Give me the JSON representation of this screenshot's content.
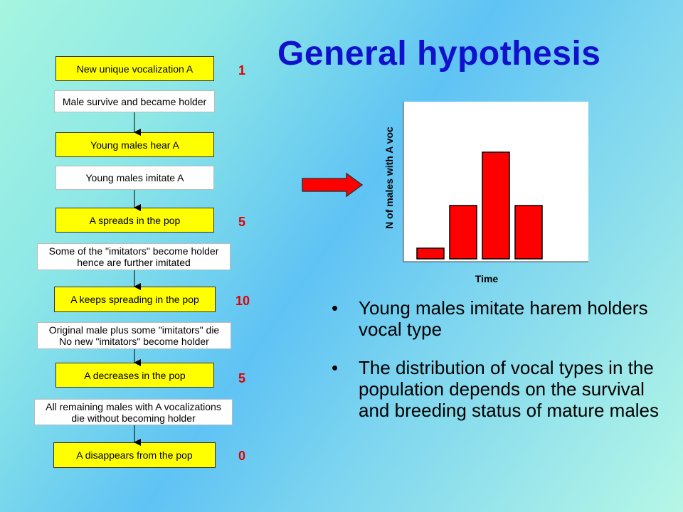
{
  "title": "General hypothesis",
  "flow": {
    "states": [
      {
        "label": "New unique vocalization A",
        "count": "1"
      },
      {
        "label": "Young males hear A",
        "count": ""
      },
      {
        "label": "A spreads in the pop",
        "count": "5"
      },
      {
        "label": "A keeps spreading in the pop",
        "count": "10"
      },
      {
        "label": "A decreases in the pop",
        "count": "5"
      },
      {
        "label": "A disappears from the pop",
        "count": "0"
      }
    ],
    "transitions": [
      {
        "lines": [
          "Male survive and became holder"
        ]
      },
      {
        "lines": [
          "Young males imitate A"
        ]
      },
      {
        "lines": [
          "Some of the \"imitators\" become holder",
          "hence are further imitated"
        ]
      },
      {
        "lines": [
          "Original male plus some \"imitators\" die",
          "No new \"imitators\" become holder"
        ]
      },
      {
        "lines": [
          "All remaining males with A vocalizations",
          "die without becoming holder"
        ]
      }
    ]
  },
  "chart_data": {
    "type": "bar",
    "xlabel": "Time",
    "ylabel": "N of males with A voc",
    "values": [
      1,
      5,
      10,
      5
    ],
    "ylim": [
      0,
      10
    ],
    "colors": {
      "bar": "#ff0000",
      "arrow": "#ff0000"
    }
  },
  "bullets": [
    "Young males imitate harem holders vocal type",
    "The distribution of vocal types in the population depends on the survival and breeding status of mature males"
  ]
}
